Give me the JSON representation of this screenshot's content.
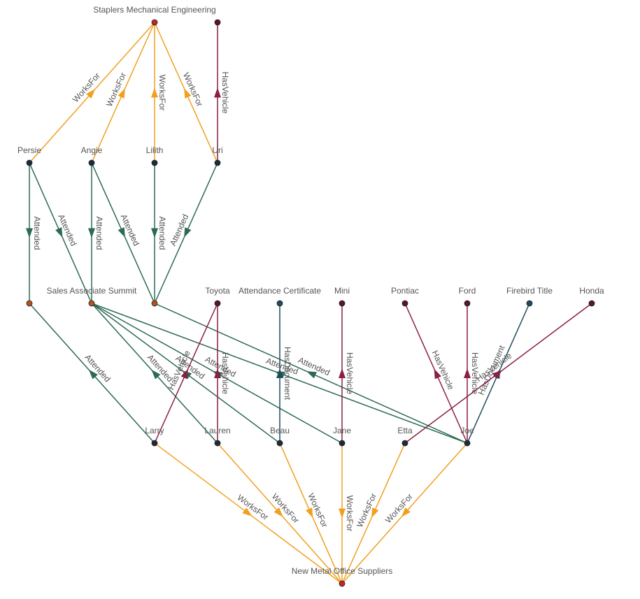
{
  "nodes": [
    {
      "label": "Staplers Mechanical Engineering"
    },
    {
      "label": null
    },
    {
      "label": "Persie"
    },
    {
      "label": "Angie"
    },
    {
      "label": "Lilith"
    },
    {
      "label": "Uri"
    },
    {
      "label": null
    },
    {
      "label": "Sales Associate Summit"
    },
    {
      "label": null
    },
    {
      "label": "Toyota"
    },
    {
      "label": "Attendance Certificate"
    },
    {
      "label": "Mini"
    },
    {
      "label": "Pontiac"
    },
    {
      "label": "Ford"
    },
    {
      "label": "Firebird Title"
    },
    {
      "label": "Honda"
    },
    {
      "label": "Larry"
    },
    {
      "label": "Lauren"
    },
    {
      "label": "Beau"
    },
    {
      "label": "Jane"
    },
    {
      "label": "Etta"
    },
    {
      "label": "Joe"
    },
    {
      "label": "New Metal Office Suppliers"
    }
  ],
  "edges": [
    {
      "source": 2,
      "target": 0,
      "label": "WorksFor",
      "color": "#f0a01e"
    },
    {
      "source": 3,
      "target": 0,
      "label": "WorksFor",
      "color": "#f0a01e"
    },
    {
      "source": 4,
      "target": 0,
      "label": "WorksFor",
      "color": "#f0a01e"
    },
    {
      "source": 5,
      "target": 0,
      "label": "WorksFor",
      "color": "#f0a01e"
    },
    {
      "source": 5,
      "target": 1,
      "label": "HasVehicle",
      "color": "#8b1e45"
    },
    {
      "source": 2,
      "target": 6,
      "label": "Attended",
      "color": "#2d6a56"
    },
    {
      "source": 2,
      "target": 7,
      "label": "Attended",
      "color": "#2d6a56"
    },
    {
      "source": 3,
      "target": 7,
      "label": "Attended",
      "color": "#2d6a56"
    },
    {
      "source": 3,
      "target": 8,
      "label": "Attended",
      "color": "#2d6a56"
    },
    {
      "source": 4,
      "target": 8,
      "label": "Attended",
      "color": "#2d6a56"
    },
    {
      "source": 5,
      "target": 8,
      "label": "Attended",
      "color": "#2d6a56"
    },
    {
      "source": 16,
      "target": 6,
      "label": "Attended",
      "color": "#2d6a56"
    },
    {
      "source": 17,
      "target": 7,
      "label": "Attended",
      "color": "#2d6a56"
    },
    {
      "source": 18,
      "target": 7,
      "label": "Attended",
      "color": "#2d6a56"
    },
    {
      "source": 19,
      "target": 7,
      "label": "Attended",
      "color": "#2d6a56"
    },
    {
      "source": 21,
      "target": 7,
      "label": "Attended",
      "color": "#2d6a56"
    },
    {
      "source": 21,
      "target": 8,
      "label": "Attended",
      "color": "#2d6a56"
    },
    {
      "source": 16,
      "target": 9,
      "label": "HasVehicle",
      "color": "#8b1e45"
    },
    {
      "source": 17,
      "target": 9,
      "label": "HasVehicle",
      "color": "#8b1e45"
    },
    {
      "source": 18,
      "target": 10,
      "label": "HasDocument",
      "color": "#1f4b5c"
    },
    {
      "source": 19,
      "target": 11,
      "label": "HasVehicle",
      "color": "#8b1e45"
    },
    {
      "source": 21,
      "target": 12,
      "label": "HasVehicle",
      "color": "#8b1e45"
    },
    {
      "source": 21,
      "target": 13,
      "label": "HasVehicle",
      "color": "#8b1e45"
    },
    {
      "source": 21,
      "target": 14,
      "label": "HasDocument",
      "color": "#1f4b5c"
    },
    {
      "source": 20,
      "target": 15,
      "label": "HasVehicle",
      "color": "#8b1e45"
    },
    {
      "source": 16,
      "target": 22,
      "label": "WorksFor",
      "color": "#f0a01e"
    },
    {
      "source": 17,
      "target": 22,
      "label": "WorksFor",
      "color": "#f0a01e"
    },
    {
      "source": 18,
      "target": 22,
      "label": "WorksFor",
      "color": "#f0a01e"
    },
    {
      "source": 19,
      "target": 22,
      "label": "WorksFor",
      "color": "#f0a01e"
    },
    {
      "source": 20,
      "target": 22,
      "label": "WorksFor",
      "color": "#f0a01e"
    },
    {
      "source": 21,
      "target": 22,
      "label": "WorksFor",
      "color": "#f0a01e"
    }
  ]
}
